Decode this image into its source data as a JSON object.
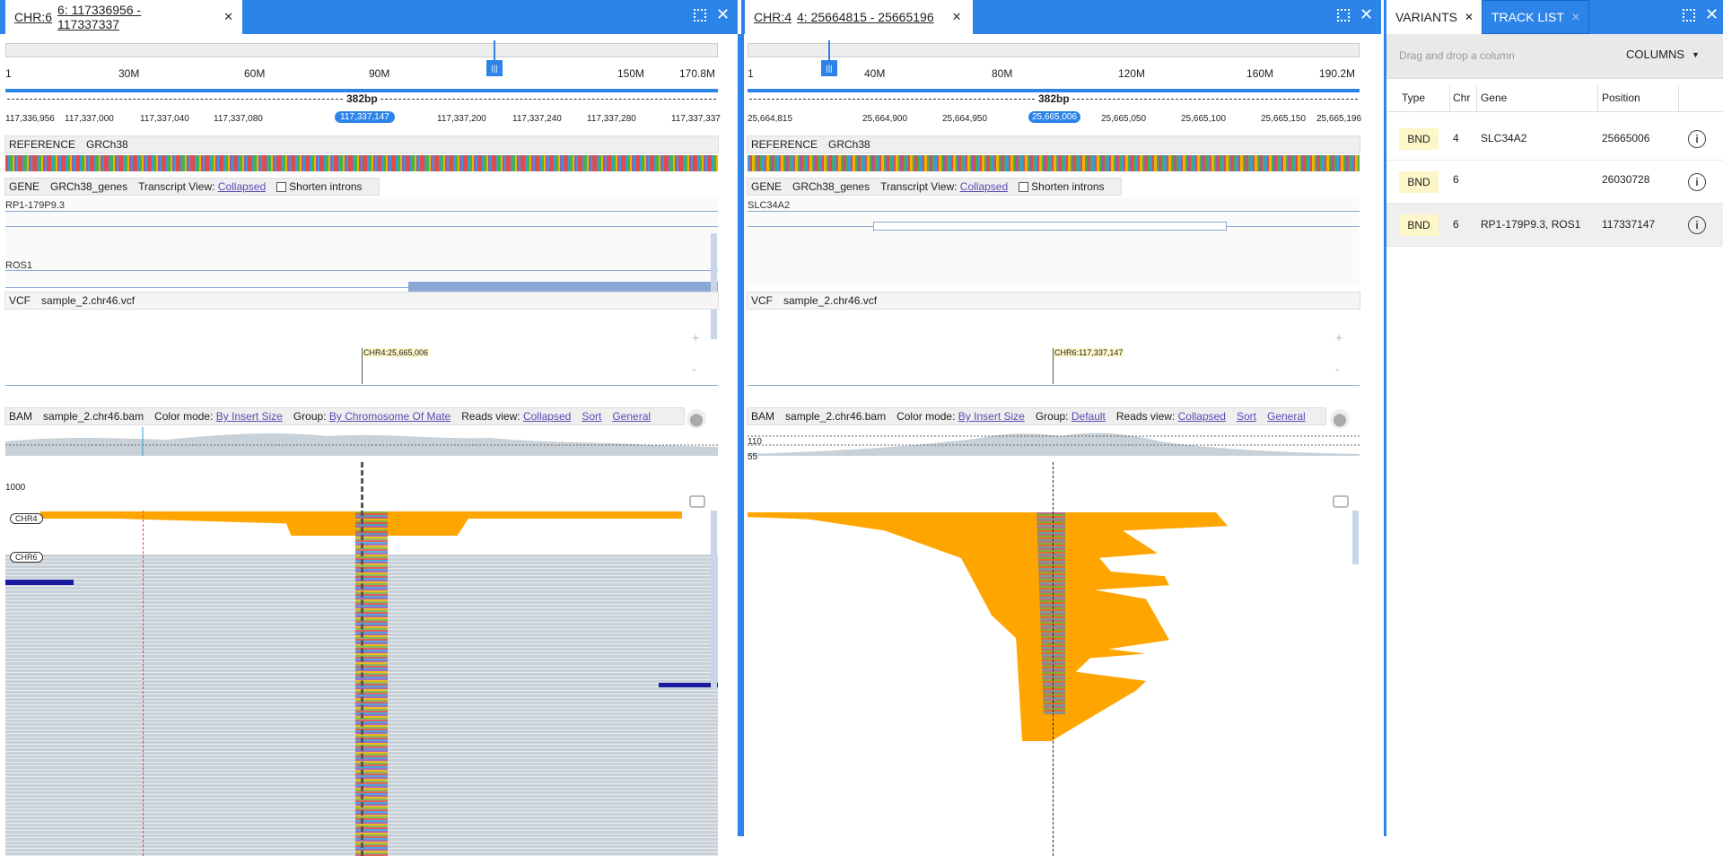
{
  "left_pane": {
    "tab_chr": "CHR:6",
    "tab_range": "6: 117336956 - 117337337",
    "ruler_ticks": [
      "1",
      "30M",
      "60M",
      "90M",
      "150M",
      "170.8M"
    ],
    "span": "382bp",
    "pos_ticks": [
      "117,336,956",
      "117,337,000",
      "117,337,040",
      "117,337,080",
      "117,337,200",
      "117,337,240",
      "117,337,280",
      "117,337,337"
    ],
    "cursor_pos": "117,337,147",
    "reference": {
      "label": "REFERENCE",
      "name": "GRCh38"
    },
    "gene": {
      "label": "GENE",
      "name": "GRCh38_genes",
      "view_label": "Transcript View:",
      "view": "Collapsed",
      "shorten": "Shorten introns",
      "transcripts": [
        "RP1-179P9.3",
        "ROS1"
      ]
    },
    "vcf": {
      "label": "VCF",
      "name": "sample_2.chr46.vcf",
      "marker": "CHR4:25,665,006"
    },
    "bam": {
      "label": "BAM",
      "name": "sample_2.chr46.bam",
      "color_label": "Color mode:",
      "color": "By Insert Size",
      "group_label": "Group:",
      "group": "By Chromosome Of Mate",
      "reads_label": "Reads view:",
      "reads": "Collapsed",
      "sort": "Sort",
      "general": "General",
      "cov_label": "1000",
      "groups": [
        "CHR4",
        "CHR6"
      ]
    }
  },
  "mid_pane": {
    "tab_chr": "CHR:4",
    "tab_range": "4: 25664815 - 25665196",
    "ruler_ticks": [
      "1",
      "40M",
      "80M",
      "120M",
      "160M",
      "190.2M"
    ],
    "span": "382bp",
    "pos_ticks": [
      "25,664,815",
      "25,664,900",
      "25,664,950",
      "25,665,050",
      "25,665,100",
      "25,665,150",
      "25,665,196"
    ],
    "cursor_pos": "25,665,006",
    "reference": {
      "label": "REFERENCE",
      "name": "GRCh38"
    },
    "gene": {
      "label": "GENE",
      "name": "GRCh38_genes",
      "view_label": "Transcript View:",
      "view": "Collapsed",
      "shorten": "Shorten introns",
      "transcripts": [
        "SLC34A2"
      ]
    },
    "vcf": {
      "label": "VCF",
      "name": "sample_2.chr46.vcf",
      "marker": "CHR6:117,337,147"
    },
    "bam": {
      "label": "BAM",
      "name": "sample_2.chr46.bam",
      "color_label": "Color mode:",
      "color": "By Insert Size",
      "group_label": "Group:",
      "group": "Default",
      "reads_label": "Reads view:",
      "reads": "Collapsed",
      "sort": "Sort",
      "general": "General",
      "cov_hi": "110",
      "cov_lo": "55"
    }
  },
  "right_panel": {
    "tabs": [
      "VARIANTS",
      "TRACK LIST"
    ],
    "drag_hint": "Drag and drop a column",
    "columns_btn": "COLUMNS",
    "headers": [
      "Type",
      "Chr",
      "Gene",
      "Position"
    ],
    "rows": [
      {
        "type": "BND",
        "chr": "4",
        "gene": "SLC34A2",
        "position": "25665006"
      },
      {
        "type": "BND",
        "chr": "6",
        "gene": "",
        "position": "26030728"
      },
      {
        "type": "BND",
        "chr": "6",
        "gene": "RP1-179P9.3, ROS1",
        "position": "117337147"
      }
    ]
  },
  "colors": {
    "accent": "#2d84e8",
    "orange": "#ffa500",
    "read_gray": "#c9d1d8",
    "badge": "#fdf6c8"
  },
  "icons": [
    "maximize-icon",
    "close-icon",
    "plus-icon",
    "minus-icon",
    "map-pin-icon",
    "camera-icon",
    "info-icon",
    "chevron-down-icon"
  ]
}
